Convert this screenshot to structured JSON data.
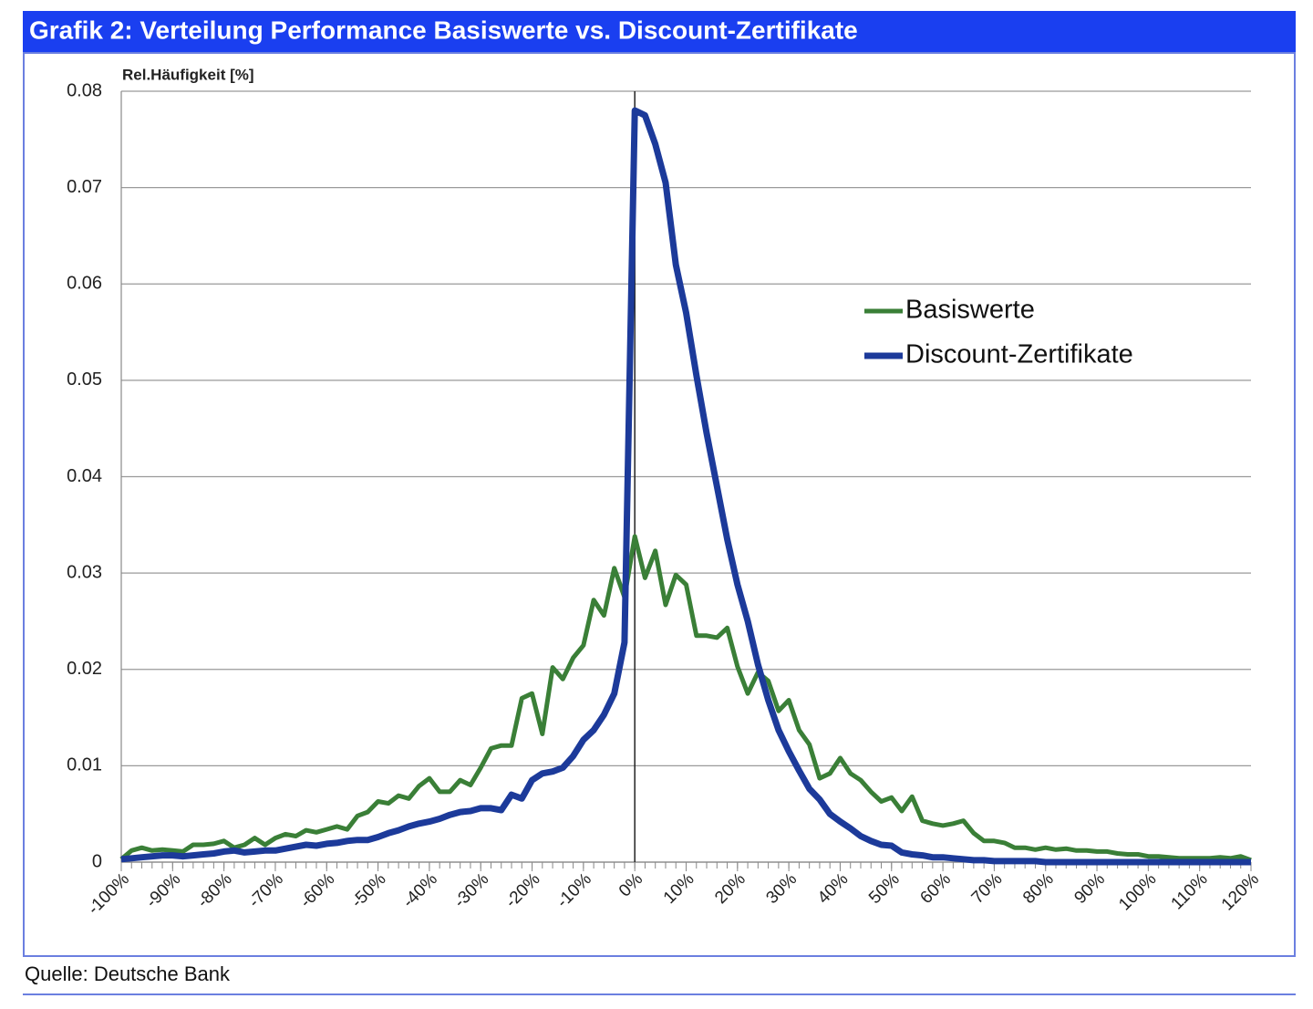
{
  "chart_data": {
    "type": "line",
    "title": "Grafik 2: Verteilung Performance Basiswerte vs. Discount-Zertifikate",
    "y_label": "Rel.Häufigkeit [%]",
    "source": "Quelle: Deutsche Bank",
    "x": [
      -100,
      -98,
      -96,
      -94,
      -92,
      -90,
      -88,
      -86,
      -84,
      -82,
      -80,
      -78,
      -76,
      -74,
      -72,
      -70,
      -68,
      -66,
      -64,
      -62,
      -60,
      -58,
      -56,
      -54,
      -52,
      -50,
      -48,
      -46,
      -44,
      -42,
      -40,
      -38,
      -36,
      -34,
      -32,
      -30,
      -28,
      -26,
      -24,
      -22,
      -20,
      -18,
      -16,
      -14,
      -12,
      -10,
      -8,
      -6,
      -4,
      -2,
      0,
      2,
      4,
      6,
      8,
      10,
      12,
      14,
      16,
      18,
      20,
      22,
      24,
      26,
      28,
      30,
      32,
      34,
      36,
      38,
      40,
      42,
      44,
      46,
      48,
      50,
      52,
      54,
      56,
      58,
      60,
      62,
      64,
      66,
      68,
      70,
      72,
      74,
      76,
      78,
      80,
      82,
      84,
      86,
      88,
      90,
      92,
      94,
      96,
      98,
      100,
      102,
      104,
      106,
      108,
      110,
      112,
      114,
      116,
      118,
      120
    ],
    "series": [
      {
        "name": "Basiswerte",
        "color": "#3a7f37",
        "values": [
          0.0003,
          0.0012,
          0.0015,
          0.0012,
          0.0013,
          0.0012,
          0.0011,
          0.0018,
          0.0018,
          0.0019,
          0.0022,
          0.0015,
          0.0018,
          0.0025,
          0.0018,
          0.0025,
          0.0029,
          0.0027,
          0.0033,
          0.0031,
          0.0034,
          0.0037,
          0.0034,
          0.0048,
          0.0052,
          0.0063,
          0.0061,
          0.0069,
          0.0066,
          0.0079,
          0.0087,
          0.0073,
          0.0073,
          0.0085,
          0.008,
          0.0098,
          0.0118,
          0.0121,
          0.0121,
          0.017,
          0.0175,
          0.0133,
          0.0202,
          0.019,
          0.0212,
          0.0225,
          0.0272,
          0.0256,
          0.0305,
          0.0275,
          0.0338,
          0.0295,
          0.0323,
          0.0267,
          0.0298,
          0.0288,
          0.0235,
          0.0235,
          0.0233,
          0.0243,
          0.0203,
          0.0175,
          0.0197,
          0.0188,
          0.0157,
          0.0168,
          0.0137,
          0.0122,
          0.0087,
          0.0092,
          0.0108,
          0.0092,
          0.0085,
          0.0073,
          0.0063,
          0.0067,
          0.0053,
          0.0068,
          0.0043,
          0.004,
          0.0038,
          0.004,
          0.0043,
          0.003,
          0.0022,
          0.0022,
          0.002,
          0.0015,
          0.0015,
          0.0013,
          0.0015,
          0.0013,
          0.0014,
          0.0012,
          0.0012,
          0.0011,
          0.0011,
          0.0009,
          0.0008,
          0.0008,
          0.0006,
          0.0006,
          0.0005,
          0.0004,
          0.0004,
          0.0004,
          0.0004,
          0.0005,
          0.0004,
          0.0006,
          0.0002
        ]
      },
      {
        "name": "Discount-Zertifikate",
        "color": "#1c3a9a",
        "values": [
          0.0003,
          0.0004,
          0.0005,
          0.0006,
          0.0007,
          0.0007,
          0.0006,
          0.0007,
          0.0008,
          0.0009,
          0.0011,
          0.0012,
          0.001,
          0.0011,
          0.0012,
          0.0012,
          0.0014,
          0.0016,
          0.0018,
          0.0017,
          0.0019,
          0.002,
          0.0022,
          0.0023,
          0.0023,
          0.0026,
          0.003,
          0.0033,
          0.0037,
          0.004,
          0.0042,
          0.0045,
          0.0049,
          0.0052,
          0.0053,
          0.0056,
          0.0056,
          0.0054,
          0.007,
          0.0066,
          0.0085,
          0.0092,
          0.0094,
          0.0098,
          0.011,
          0.0127,
          0.0137,
          0.0153,
          0.0175,
          0.0228,
          0.078,
          0.0775,
          0.0745,
          0.0705,
          0.062,
          0.057,
          0.0505,
          0.0445,
          0.039,
          0.0335,
          0.0288,
          0.025,
          0.0205,
          0.0168,
          0.0137,
          0.0115,
          0.0095,
          0.0076,
          0.0065,
          0.005,
          0.0042,
          0.0035,
          0.0027,
          0.0022,
          0.0018,
          0.0017,
          0.001,
          0.0008,
          0.0007,
          0.0005,
          0.0005,
          0.0004,
          0.0003,
          0.0002,
          0.0002,
          0.0001,
          0.0001,
          0.0001,
          0.0001,
          0.0001,
          0,
          0,
          0,
          0,
          0,
          0,
          0,
          0,
          0,
          0,
          0,
          0,
          0,
          0,
          0,
          0,
          0,
          0,
          0,
          0,
          0
        ]
      }
    ],
    "xlim": [
      -100,
      120
    ],
    "xticks": [
      {
        "value": -100,
        "label": "-100%"
      },
      {
        "value": -90,
        "label": "-90%"
      },
      {
        "value": -80,
        "label": "-80%"
      },
      {
        "value": -70,
        "label": "-70%"
      },
      {
        "value": -60,
        "label": "-60%"
      },
      {
        "value": -50,
        "label": "-50%"
      },
      {
        "value": -40,
        "label": "-40%"
      },
      {
        "value": -30,
        "label": "-30%"
      },
      {
        "value": -20,
        "label": "-20%"
      },
      {
        "value": -10,
        "label": "-10%"
      },
      {
        "value": 0,
        "label": "0%"
      },
      {
        "value": 10,
        "label": "10%"
      },
      {
        "value": 20,
        "label": "20%"
      },
      {
        "value": 30,
        "label": "30%"
      },
      {
        "value": 40,
        "label": "40%"
      },
      {
        "value": 50,
        "label": "50%"
      },
      {
        "value": 60,
        "label": "60%"
      },
      {
        "value": 70,
        "label": "70%"
      },
      {
        "value": 80,
        "label": "80%"
      },
      {
        "value": 90,
        "label": "90%"
      },
      {
        "value": 100,
        "label": "100%"
      },
      {
        "value": 110,
        "label": "110%"
      },
      {
        "value": 120,
        "label": "120%"
      }
    ],
    "ylim": [
      0,
      0.08
    ],
    "yticks": [
      0,
      0.01,
      0.02,
      0.03,
      0.04,
      0.05,
      0.06,
      0.07,
      0.08
    ],
    "grid": true
  }
}
